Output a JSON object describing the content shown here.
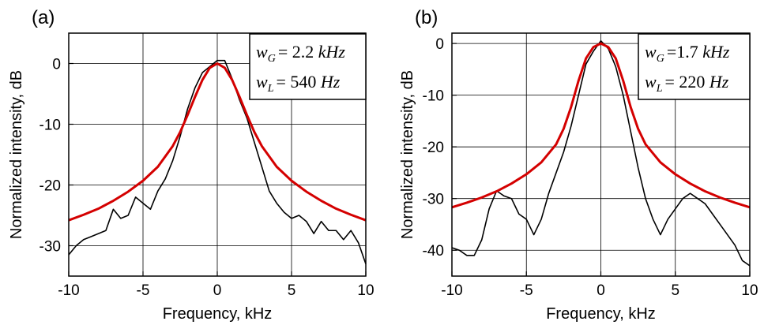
{
  "chart_data": [
    {
      "type": "line",
      "panel_label": "(a)",
      "xlabel": "Frequency, kHz",
      "ylabel": "Normalized intensity, dB",
      "xlim": [
        -10,
        10
      ],
      "ylim": [
        -35,
        5
      ],
      "xticks": [
        -10,
        -5,
        0,
        5,
        10
      ],
      "yticks": [
        0,
        -10,
        -20,
        -30
      ],
      "grid": true,
      "annotation": {
        "wG_symbol": "w",
        "wG_sub": "G",
        "wG_value": "= 2.2",
        "wG_unit": "kHz",
        "wL_symbol": "w",
        "wL_sub": "L",
        "wL_value": "= 540",
        "wL_unit": "Hz"
      },
      "series": [
        {
          "color": "#000000",
          "x": [
            -10,
            -9.5,
            -9,
            -8.5,
            -8,
            -7.5,
            -7,
            -6.5,
            -6,
            -5.5,
            -5,
            -4.5,
            -4,
            -3.5,
            -3,
            -2.5,
            -2,
            -1.5,
            -1,
            -0.5,
            0,
            0.5,
            1,
            1.5,
            2,
            2.5,
            3,
            3.5,
            4,
            4.5,
            5,
            5.5,
            6,
            6.5,
            7,
            7.5,
            8,
            8.5,
            9,
            9.5,
            10
          ],
          "values": [
            -31.5,
            -30,
            -29,
            -28.5,
            -28,
            -27.5,
            -24,
            -25.5,
            -25,
            -22,
            -23,
            -24,
            -21,
            -19,
            -16,
            -12,
            -7.5,
            -4,
            -1.5,
            -0.5,
            0.5,
            0.5,
            -2.5,
            -6,
            -9,
            -13,
            -17,
            -21,
            -23,
            -24.5,
            -25.5,
            -25,
            -26,
            -28,
            -26,
            -27.5,
            -27.5,
            -29,
            -27.5,
            -29.5,
            -33
          ]
        },
        {
          "color": "#d40000",
          "x": [
            -10,
            -9,
            -8,
            -7,
            -6,
            -5,
            -4,
            -3,
            -2.5,
            -2,
            -1.5,
            -1,
            -0.5,
            0,
            0.5,
            1,
            1.5,
            2,
            2.5,
            3,
            4,
            5,
            6,
            7,
            8,
            9,
            10
          ],
          "values": [
            -25.8,
            -24.9,
            -23.9,
            -22.6,
            -21.1,
            -19.3,
            -17,
            -13.6,
            -11.3,
            -8.5,
            -5.5,
            -2.7,
            -0.7,
            0,
            -0.7,
            -2.7,
            -5.5,
            -8.5,
            -11.3,
            -13.6,
            -17,
            -19.3,
            -21.1,
            -22.6,
            -23.9,
            -24.9,
            -25.8
          ]
        }
      ]
    },
    {
      "type": "line",
      "panel_label": "(b)",
      "xlabel": "Frequency, kHz",
      "ylabel": "Normalized intensity, dB",
      "xlim": [
        -10,
        10
      ],
      "ylim": [
        -45,
        2
      ],
      "xticks": [
        -10,
        -5,
        0,
        5,
        10
      ],
      "yticks": [
        0,
        -10,
        -20,
        -30,
        -40
      ],
      "grid": true,
      "annotation": {
        "wG_symbol": "w",
        "wG_sub": "G",
        "wG_value": "=1.7",
        "wG_unit": "kHz",
        "wL_symbol": "w",
        "wL_sub": "L",
        "wL_value": "= 220",
        "wL_unit": "Hz"
      },
      "series": [
        {
          "color": "#000000",
          "x": [
            -10,
            -9.5,
            -9,
            -8.5,
            -8,
            -7.5,
            -7,
            -6.5,
            -6,
            -5.5,
            -5,
            -4.5,
            -4,
            -3.5,
            -3,
            -2.5,
            -2,
            -1.5,
            -1,
            -0.5,
            0,
            0.5,
            1,
            1.5,
            2,
            2.5,
            3,
            3.5,
            4,
            4.5,
            5,
            5.5,
            6,
            6.5,
            7,
            7.5,
            8,
            8.5,
            9,
            9.5,
            10
          ],
          "values": [
            -39.5,
            -40,
            -41,
            -41,
            -38,
            -32,
            -28.5,
            -29.5,
            -30,
            -33,
            -34,
            -37,
            -34,
            -29,
            -25,
            -21,
            -16,
            -10,
            -4,
            -1.5,
            0.5,
            -1,
            -4.5,
            -10,
            -17,
            -24,
            -30,
            -34,
            -37,
            -34,
            -32,
            -30,
            -29,
            -30,
            -31,
            -33,
            -35,
            -37,
            -39,
            -42,
            -43
          ]
        },
        {
          "color": "#d40000",
          "x": [
            -10,
            -9,
            -8,
            -7,
            -6,
            -5,
            -4,
            -3,
            -2.5,
            -2,
            -1.5,
            -1,
            -0.5,
            0,
            0.5,
            1,
            1.5,
            2,
            2.5,
            3,
            4,
            5,
            6,
            7,
            8,
            9,
            10
          ],
          "values": [
            -31.7,
            -30.8,
            -29.8,
            -28.6,
            -27.1,
            -25.3,
            -23,
            -19.5,
            -16.5,
            -12.3,
            -7.2,
            -2.9,
            -0.7,
            0,
            -0.7,
            -2.9,
            -7.2,
            -12.3,
            -16.5,
            -19.5,
            -23,
            -25.3,
            -27.1,
            -28.6,
            -29.8,
            -30.8,
            -31.7
          ]
        }
      ]
    }
  ]
}
